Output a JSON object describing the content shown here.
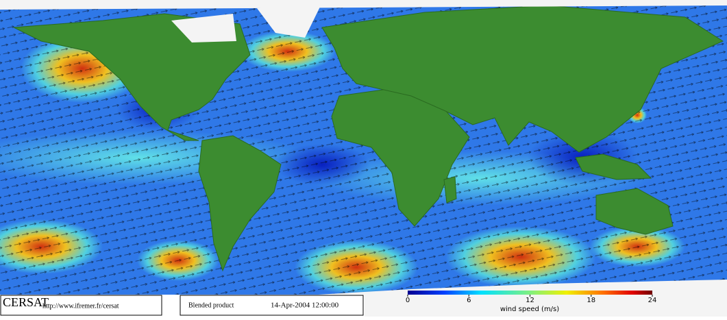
{
  "logo": "CERSAT",
  "url": "http://www.ifremer.fr/cersat",
  "product": "Blended product",
  "date": "14-Apr-2004 12:00:00",
  "colorbar": {
    "label": "wind speed (m/s)",
    "lim": [
      0,
      24
    ],
    "ticks": [
      0,
      6,
      12,
      18,
      24
    ]
  }
}
